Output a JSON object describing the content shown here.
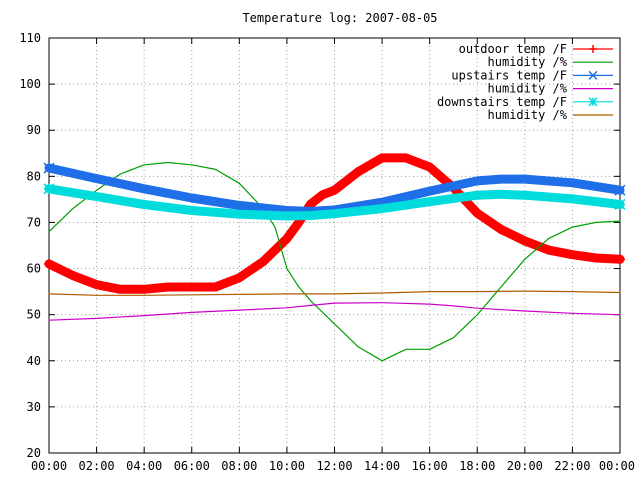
{
  "chart_data": {
    "type": "line",
    "title": "Temperature log: 2007-08-05",
    "xlabel": "",
    "ylabel": "",
    "x_ticks": [
      "00:00",
      "02:00",
      "04:00",
      "06:00",
      "08:00",
      "10:00",
      "12:00",
      "14:00",
      "16:00",
      "18:00",
      "20:00",
      "22:00",
      "00:00"
    ],
    "x_range_hours": [
      0,
      24
    ],
    "y_ticks": [
      20,
      30,
      40,
      50,
      60,
      70,
      80,
      90,
      100,
      110
    ],
    "ylim": [
      20,
      110
    ],
    "grid": true,
    "legend_position": "top-right",
    "series": [
      {
        "name": "outdoor temp /F",
        "color": "#ff0000",
        "marker": "plus",
        "style": "thick",
        "x": [
          0,
          1,
          2,
          3,
          4,
          5,
          6,
          7,
          8,
          9,
          10,
          10.5,
          11,
          11.5,
          12,
          13,
          14,
          15,
          16,
          17,
          18,
          19,
          20,
          21,
          22,
          23,
          24
        ],
        "y": [
          61,
          58.5,
          56.5,
          55.5,
          55.5,
          56,
          56,
          56,
          58,
          61.5,
          66.5,
          70,
          74,
          76,
          77,
          81,
          84,
          84,
          82,
          77.5,
          72,
          68.5,
          66,
          64,
          63,
          62.3,
          62
        ]
      },
      {
        "name": "humidity /%",
        "color": "#00a000",
        "marker": "none",
        "style": "thin",
        "x": [
          0,
          1,
          2,
          3,
          4,
          5,
          6,
          7,
          8,
          9,
          9.5,
          10,
          10.5,
          11,
          12,
          13,
          14,
          15,
          16,
          17,
          18,
          19,
          20,
          21,
          22,
          23,
          24
        ],
        "y": [
          68,
          73,
          77,
          80.5,
          82.5,
          83,
          82.5,
          81.5,
          78.5,
          73,
          69,
          60,
          56,
          53,
          48,
          43,
          40,
          42.5,
          42.5,
          45,
          50,
          56,
          62,
          66.5,
          69,
          70,
          70.3
        ]
      },
      {
        "name": "upstairs temp /F",
        "color": "#1e6fe8",
        "marker": "cross",
        "style": "thick",
        "x": [
          0,
          2,
          4,
          6,
          8,
          10,
          11,
          12,
          14,
          16,
          18,
          19,
          20,
          22,
          24
        ],
        "y": [
          81.8,
          79.5,
          77.3,
          75.3,
          73.7,
          72.6,
          72.4,
          72.7,
          74.4,
          76.8,
          79,
          79.4,
          79.4,
          78.6,
          77
        ]
      },
      {
        "name": "humidity /%",
        "color": "#cc00cc",
        "marker": "none",
        "style": "thin",
        "x": [
          0,
          2,
          4,
          6,
          8,
          10,
          11,
          12,
          14,
          16,
          17,
          18,
          20,
          22,
          24
        ],
        "y": [
          48.8,
          49.2,
          49.8,
          50.5,
          51,
          51.5,
          52,
          52.5,
          52.6,
          52.3,
          51.9,
          51.4,
          50.8,
          50.3,
          50
        ]
      },
      {
        "name": "downstairs temp /F",
        "color": "#00dcdc",
        "marker": "star",
        "style": "thick",
        "x": [
          0,
          2,
          4,
          6,
          8,
          10,
          11,
          12,
          14,
          16,
          18,
          19,
          20,
          22,
          24
        ],
        "y": [
          77.3,
          75.6,
          73.9,
          72.6,
          71.8,
          71.4,
          71.5,
          71.9,
          73,
          74.5,
          75.9,
          76.1,
          75.9,
          75.1,
          73.9
        ]
      },
      {
        "name": "humidity /%",
        "color": "#b05a00",
        "marker": "none",
        "style": "thin",
        "x": [
          0,
          2,
          4,
          6,
          8,
          10,
          12,
          14,
          16,
          18,
          20,
          22,
          24
        ],
        "y": [
          54.5,
          54.2,
          54.2,
          54.3,
          54.4,
          54.5,
          54.5,
          54.7,
          55,
          55,
          55.1,
          55,
          54.8
        ]
      }
    ]
  }
}
